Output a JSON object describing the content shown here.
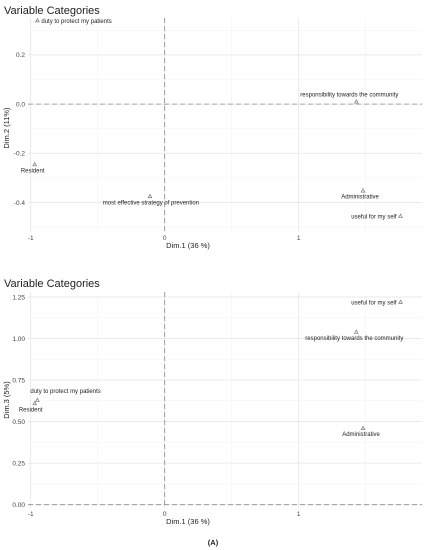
{
  "chart_data": [
    {
      "type": "scatter",
      "title": "Variable Categories",
      "xlabel": "Dim.1 (36 %)",
      "ylabel": "Dim.2 (11%)",
      "xlim": [
        -1.02,
        1.92
      ],
      "ylim": [
        -0.52,
        0.35
      ],
      "xticks": [
        -1,
        0,
        1
      ],
      "yticks": [
        -0.4,
        -0.2,
        0.0,
        0.2
      ],
      "xtick_labels": [
        "-1",
        "0",
        "1"
      ],
      "ytick_labels": [
        "-0.4",
        "-0.2",
        "0.0",
        "0.2"
      ],
      "grid": true,
      "points": [
        {
          "label": "duty to protect my patients",
          "x": -0.95,
          "y": 0.34
        },
        {
          "label": "responsibility towards the community",
          "x": 1.43,
          "y": 0.01
        },
        {
          "label": "Resident",
          "x": -0.97,
          "y": -0.245
        },
        {
          "label": "most effective strategy of prevention",
          "x": -0.11,
          "y": -0.375
        },
        {
          "label": "Administrative",
          "x": 1.48,
          "y": -0.352
        },
        {
          "label": "useful for my self",
          "x": 1.76,
          "y": -0.455
        }
      ]
    },
    {
      "type": "scatter",
      "title": "Variable Categories",
      "xlabel": "Dim.1 (36 %)",
      "ylabel": "Dim.3 (5%)",
      "xlim": [
        -1.02,
        1.92
      ],
      "ylim": [
        -0.02,
        1.28
      ],
      "xticks": [
        -1,
        0,
        1
      ],
      "yticks": [
        0.0,
        0.25,
        0.5,
        0.75,
        1.0,
        1.25
      ],
      "xtick_labels": [
        "-1",
        "0",
        "1"
      ],
      "ytick_labels": [
        "0.00",
        "0.25",
        "0.50",
        "0.75",
        "1.00",
        "1.25"
      ],
      "grid": true,
      "points": [
        {
          "label": "useful for my self",
          "x": 1.76,
          "y": 1.22
        },
        {
          "label": "responsibility towards the community",
          "x": 1.43,
          "y": 1.04
        },
        {
          "label": "duty to protect my patients",
          "x": -0.95,
          "y": 0.63
        },
        {
          "label": "Resident",
          "x": -0.97,
          "y": 0.61
        },
        {
          "label": "Administrative",
          "x": 1.48,
          "y": 0.46
        }
      ]
    }
  ],
  "caption": "(A)"
}
